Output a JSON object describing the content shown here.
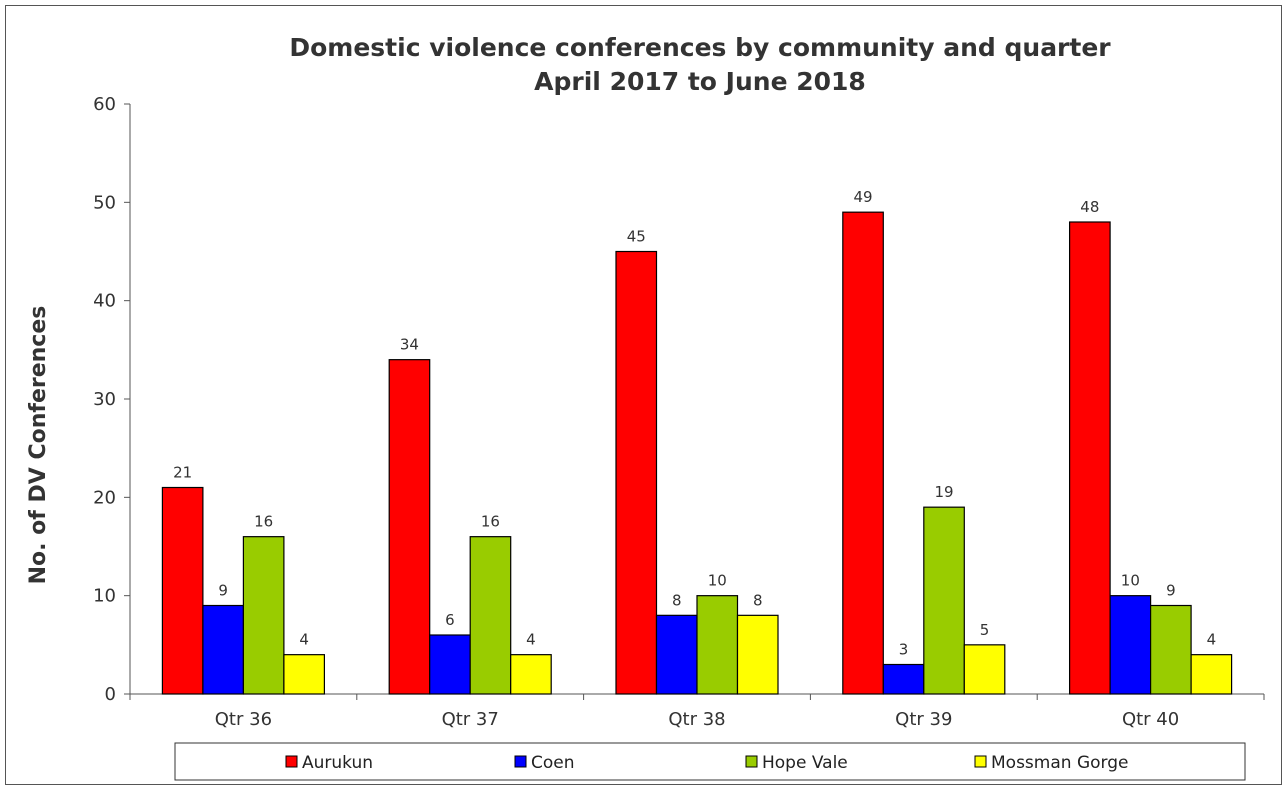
{
  "chart_data": {
    "type": "bar",
    "title_line1": "Domestic violence conferences by community and quarter",
    "title_line2": "April 2017 to June 2018",
    "xlabel": "",
    "ylabel": "No. of DV Conferences",
    "ylim": [
      0,
      60
    ],
    "yticks": [
      0,
      10,
      20,
      30,
      40,
      50,
      60
    ],
    "grid": false,
    "legend_position": "bottom",
    "categories": [
      "Qtr 36",
      "Qtr 37",
      "Qtr 38",
      "Qtr 39",
      "Qtr 40"
    ],
    "series": [
      {
        "name": "Aurukun",
        "color": "#ff0000",
        "values": [
          21,
          34,
          45,
          49,
          48
        ]
      },
      {
        "name": "Coen",
        "color": "#0000ff",
        "values": [
          9,
          6,
          8,
          3,
          10
        ]
      },
      {
        "name": "Hope Vale",
        "color": "#99cc00",
        "values": [
          16,
          16,
          10,
          19,
          9
        ]
      },
      {
        "name": "Mossman Gorge",
        "color": "#ffff00",
        "values": [
          4,
          4,
          8,
          5,
          4
        ]
      }
    ]
  }
}
